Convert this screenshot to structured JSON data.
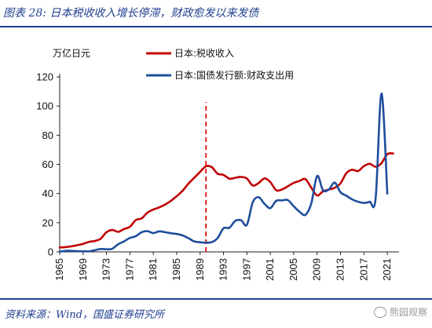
{
  "header": {
    "title": "图表 28:  日本税收收入增长停滞，财政愈发以来发债"
  },
  "footer": {
    "source": "资料来源：Wind，国盛证券研究所",
    "watermark": "熊园观察"
  },
  "colors": {
    "tax": "#c00000",
    "bond": "#1f4e9c",
    "marker": "#e02020",
    "accent": "#1f3f8f"
  },
  "chart_data": {
    "type": "line",
    "title": "",
    "unit_label": "万亿日元",
    "xlabel": "",
    "ylabel": "",
    "xlim": [
      1965,
      2023
    ],
    "ylim": [
      0,
      120
    ],
    "yticks": [
      0,
      20,
      40,
      60,
      80,
      100,
      120
    ],
    "xticks": [
      1965,
      1969,
      1973,
      1977,
      1981,
      1985,
      1989,
      1993,
      1997,
      2001,
      2005,
      2009,
      2013,
      2017,
      2021
    ],
    "grid": false,
    "legend_position": "top-right",
    "marker_line": {
      "x": 1990,
      "style": "dashed"
    },
    "series": [
      {
        "name": "日本:税收收入",
        "color": "#c00000",
        "x": [
          1965,
          1966,
          1967,
          1968,
          1969,
          1970,
          1971,
          1972,
          1973,
          1974,
          1975,
          1976,
          1977,
          1978,
          1979,
          1980,
          1981,
          1982,
          1983,
          1984,
          1985,
          1986,
          1987,
          1988,
          1989,
          1990,
          1991,
          1992,
          1993,
          1994,
          1995,
          1996,
          1997,
          1998,
          1999,
          2000,
          2001,
          2002,
          2003,
          2004,
          2005,
          2006,
          2007,
          2008,
          2009,
          2010,
          2011,
          2012,
          2013,
          2014,
          2015,
          2016,
          2017,
          2018,
          2019,
          2020,
          2021,
          2022
        ],
        "values": [
          3.0,
          3.3,
          3.8,
          4.6,
          5.5,
          6.9,
          7.5,
          9.0,
          13.5,
          15.0,
          13.8,
          15.7,
          17.2,
          21.8,
          23.0,
          26.9,
          29.0,
          30.5,
          32.4,
          35.0,
          38.2,
          41.9,
          46.8,
          50.8,
          54.9,
          58.7,
          58.1,
          53.6,
          52.8,
          50.2,
          50.8,
          51.4,
          50.3,
          45.5,
          47.2,
          50.4,
          47.9,
          42.3,
          42.8,
          45.0,
          47.3,
          48.7,
          49.9,
          44.0,
          38.7,
          41.5,
          42.8,
          43.9,
          47.0,
          54.0,
          56.3,
          55.4,
          58.8,
          60.4,
          58.4,
          60.8,
          67.0,
          67.5
        ]
      },
      {
        "name": "日本:国债发行额:财政支出用",
        "color": "#1f4e9c",
        "x": [
          1965,
          1966,
          1967,
          1968,
          1969,
          1970,
          1971,
          1972,
          1973,
          1974,
          1975,
          1976,
          1977,
          1978,
          1979,
          1980,
          1981,
          1982,
          1983,
          1984,
          1985,
          1986,
          1987,
          1988,
          1989,
          1990,
          1991,
          1992,
          1993,
          1994,
          1995,
          1996,
          1997,
          1998,
          1999,
          2000,
          2001,
          2002,
          2003,
          2004,
          2005,
          2006,
          2007,
          2008,
          2009,
          2010,
          2011,
          2012,
          2013,
          2014,
          2015,
          2016,
          2017,
          2018,
          2019,
          2020,
          2021
        ],
        "values": [
          0.2,
          0.7,
          0.7,
          0.5,
          0.4,
          0.4,
          1.2,
          2.0,
          1.8,
          2.2,
          5.3,
          7.2,
          9.6,
          10.7,
          13.5,
          14.2,
          12.9,
          14.1,
          13.5,
          12.8,
          12.3,
          11.3,
          9.4,
          7.2,
          6.6,
          6.3,
          6.7,
          9.5,
          16.2,
          16.5,
          21.2,
          21.7,
          18.5,
          34.0,
          37.5,
          33.0,
          30.0,
          35.0,
          35.3,
          35.5,
          31.3,
          27.5,
          25.4,
          33.2,
          52.0,
          42.3,
          42.8,
          47.5,
          40.9,
          38.5,
          36.0,
          34.4,
          33.6,
          34.4,
          36.6,
          108.6,
          40.0
        ]
      }
    ]
  }
}
